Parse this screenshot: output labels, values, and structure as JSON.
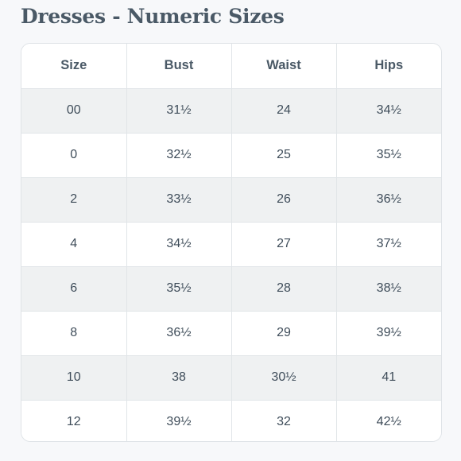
{
  "page": {
    "title": "Dresses - Numeric Sizes"
  },
  "table": {
    "headers": [
      "Size",
      "Bust",
      "Waist",
      "Hips"
    ],
    "rows": [
      [
        "00",
        "31½",
        "24",
        "34½"
      ],
      [
        "0",
        "32½",
        "25",
        "35½"
      ],
      [
        "2",
        "33½",
        "26",
        "36½"
      ],
      [
        "4",
        "34½",
        "27",
        "37½"
      ],
      [
        "6",
        "35½",
        "28",
        "38½"
      ],
      [
        "8",
        "36½",
        "29",
        "39½"
      ],
      [
        "10",
        "38",
        "30½",
        "41"
      ],
      [
        "12",
        "39½",
        "32",
        "42½"
      ]
    ]
  },
  "colors": {
    "background": "#f7f8fa",
    "text": "#3f4d5a",
    "stripe": "#eff1f2",
    "border": "#e1e5e8"
  }
}
